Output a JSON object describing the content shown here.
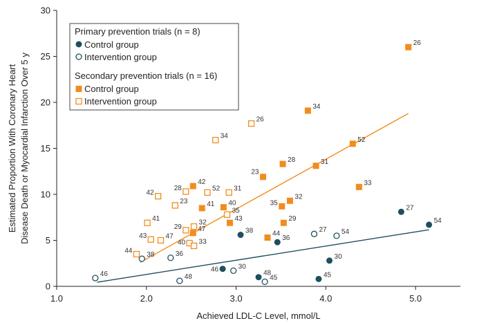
{
  "chart_data": {
    "type": "scatter",
    "xlabel": "Achieved LDL-C Level, mmol/L",
    "ylabel_lines": [
      "Estimated Proportion With Coronary Heart",
      "Disease Death or Myocardial Infarction Over 5 y"
    ],
    "xlim": [
      1.0,
      5.5
    ],
    "ylim": [
      0,
      30
    ],
    "xticks": [
      "1.0",
      "2.0",
      "3.0",
      "4.0",
      "5.0"
    ],
    "yticks": [
      "0",
      "5",
      "10",
      "15",
      "20",
      "25",
      "30"
    ],
    "grid": false,
    "legend_position": "top-left",
    "legend": {
      "primary_header": "Primary prevention trials (n = 8)",
      "primary_control": "Control group",
      "primary_intervention": "Intervention group",
      "secondary_header": "Secondary prevention trials (n = 16)",
      "secondary_control": "Control group",
      "secondary_intervention": "Intervention group"
    },
    "colors": {
      "primary": "#1f4e5f",
      "secondary": "#f28c1e"
    },
    "series": [
      {
        "group": "primary",
        "arm": "control",
        "points": [
          {
            "x": 3.05,
            "y": 5.6,
            "label": "38"
          },
          {
            "x": 3.46,
            "y": 4.8,
            "label": "36"
          },
          {
            "x": 2.85,
            "y": 1.9,
            "label": "46"
          },
          {
            "x": 3.25,
            "y": 1.0,
            "label": "48"
          },
          {
            "x": 4.04,
            "y": 2.8,
            "label": "30"
          },
          {
            "x": 3.92,
            "y": 0.8,
            "label": "45"
          },
          {
            "x": 4.84,
            "y": 8.1,
            "label": "27"
          },
          {
            "x": 5.15,
            "y": 6.7,
            "label": "54"
          }
        ]
      },
      {
        "group": "primary",
        "arm": "intervention",
        "points": [
          {
            "x": 1.43,
            "y": 0.9,
            "label": "46"
          },
          {
            "x": 1.95,
            "y": 3.0,
            "label": "38"
          },
          {
            "x": 2.27,
            "y": 3.1,
            "label": "36"
          },
          {
            "x": 2.37,
            "y": 0.6,
            "label": "48"
          },
          {
            "x": 2.97,
            "y": 1.7,
            "label": "30"
          },
          {
            "x": 3.32,
            "y": 0.5,
            "label": "45"
          },
          {
            "x": 3.87,
            "y": 5.7,
            "label": "27"
          },
          {
            "x": 4.12,
            "y": 5.5,
            "label": "54"
          }
        ]
      },
      {
        "group": "secondary",
        "arm": "control",
        "points": [
          {
            "x": 4.92,
            "y": 26.0,
            "label": "26"
          },
          {
            "x": 3.8,
            "y": 19.1,
            "label": "34"
          },
          {
            "x": 4.3,
            "y": 15.5,
            "label": "52"
          },
          {
            "x": 3.52,
            "y": 13.3,
            "label": "28"
          },
          {
            "x": 3.89,
            "y": 13.1,
            "label": "31"
          },
          {
            "x": 3.3,
            "y": 11.9,
            "label": "23"
          },
          {
            "x": 2.52,
            "y": 10.9,
            "label": "42"
          },
          {
            "x": 4.37,
            "y": 10.8,
            "label": "33"
          },
          {
            "x": 2.62,
            "y": 8.5,
            "label": "41"
          },
          {
            "x": 3.6,
            "y": 9.3,
            "label": "32"
          },
          {
            "x": 2.86,
            "y": 8.6,
            "label": "40"
          },
          {
            "x": 3.51,
            "y": 8.7,
            "label": "35"
          },
          {
            "x": 2.93,
            "y": 6.9,
            "label": "43"
          },
          {
            "x": 3.53,
            "y": 6.9,
            "label": "29"
          },
          {
            "x": 2.52,
            "y": 5.8,
            "label": "47"
          },
          {
            "x": 3.35,
            "y": 5.3,
            "label": "44"
          }
        ]
      },
      {
        "group": "secondary",
        "arm": "intervention",
        "points": [
          {
            "x": 3.17,
            "y": 17.7,
            "label": "26"
          },
          {
            "x": 2.77,
            "y": 15.9,
            "label": "34"
          },
          {
            "x": 2.13,
            "y": 9.8,
            "label": "42"
          },
          {
            "x": 2.44,
            "y": 10.3,
            "label": "28"
          },
          {
            "x": 2.68,
            "y": 10.2,
            "label": "52"
          },
          {
            "x": 2.92,
            "y": 10.2,
            "label": "31"
          },
          {
            "x": 2.32,
            "y": 8.8,
            "label": "23"
          },
          {
            "x": 2.01,
            "y": 6.9,
            "label": "41"
          },
          {
            "x": 2.9,
            "y": 7.8,
            "label": "35"
          },
          {
            "x": 2.44,
            "y": 6.1,
            "label": "29"
          },
          {
            "x": 2.53,
            "y": 6.5,
            "label": "32"
          },
          {
            "x": 2.05,
            "y": 5.1,
            "label": "43"
          },
          {
            "x": 2.16,
            "y": 5.0,
            "label": "47"
          },
          {
            "x": 2.48,
            "y": 4.7,
            "label": "40"
          },
          {
            "x": 2.53,
            "y": 4.4,
            "label": "33"
          },
          {
            "x": 1.89,
            "y": 3.5,
            "label": "44"
          }
        ]
      }
    ],
    "trendlines": [
      {
        "group": "primary",
        "x": [
          1.45,
          5.15
        ],
        "y": [
          0.45,
          6.15
        ]
      },
      {
        "group": "secondary",
        "x": [
          1.93,
          4.92
        ],
        "y": [
          2.6,
          18.8
        ]
      }
    ]
  }
}
